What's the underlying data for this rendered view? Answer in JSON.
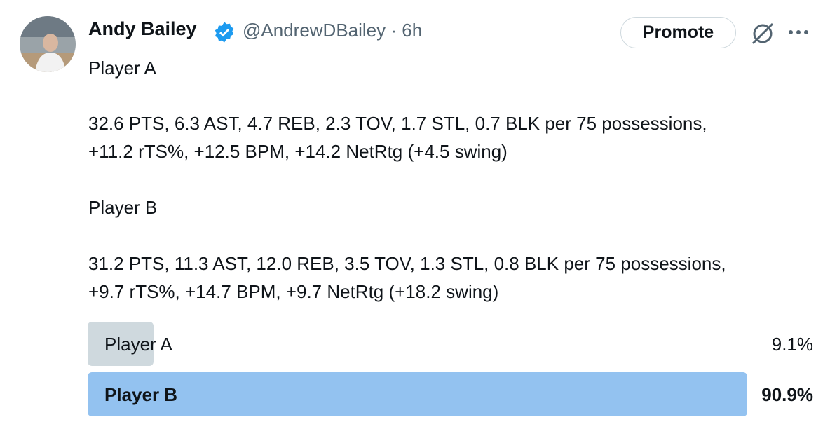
{
  "tweet": {
    "author": {
      "name": "Andy Bailey",
      "handle": "@AndrewDBailey",
      "time": "· 6h"
    },
    "promote": "Promote",
    "body": [
      "Player A",
      "32.6 PTS, 6.3 AST, 4.7 REB, 2.3 TOV, 1.7 STL, 0.7 BLK per 75 possessions,",
      "+11.2 rTS%, +12.5 BPM, +14.2 NetRtg (+4.5 swing)",
      "Player B",
      "31.2 PTS, 11.3 AST, 12.0 REB, 3.5 TOV, 1.3 STL, 0.8 BLK per 75 possessions,",
      "+9.7 rTS%, +14.7 BPM, +9.7 NetRtg (+18.2 swing)"
    ],
    "poll": {
      "options": [
        {
          "label": "Player A",
          "value": 9.1,
          "value_label": "9.1%",
          "color": "#cfd9de",
          "winner": false
        },
        {
          "label": "Player B",
          "value": 90.9,
          "value_label": "90.9%",
          "color": "#93c2f0",
          "winner": true
        }
      ]
    }
  }
}
